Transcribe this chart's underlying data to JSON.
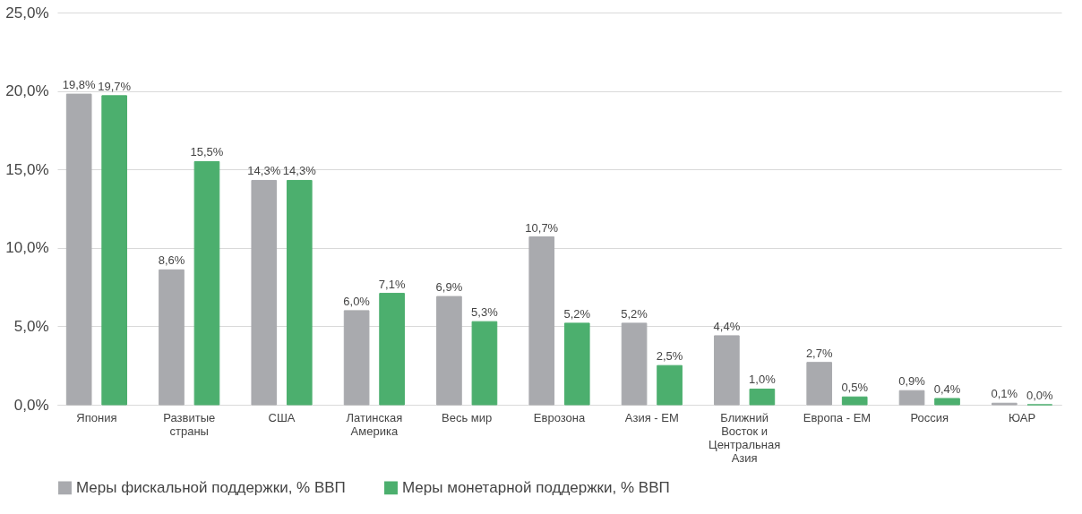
{
  "chart_data": {
    "type": "bar",
    "categories": [
      "Япония",
      "Развитые страны",
      "США",
      "Латинская Америка",
      "Весь мир",
      "Еврозона",
      "Азия - EM",
      "Ближний Восток и Центральная Азия",
      "Европа - EM",
      "Россия",
      "ЮАР"
    ],
    "series": [
      {
        "name": "Меры фискальной поддержки, % ВВП",
        "color": "#a9aaae",
        "values": [
          19.8,
          8.6,
          14.3,
          6.0,
          6.9,
          10.7,
          5.2,
          4.4,
          2.7,
          0.9,
          0.1
        ],
        "value_labels": [
          "19,8%",
          "8,6%",
          "14,3%",
          "6,0%",
          "6,9%",
          "10,7%",
          "5,2%",
          "4,4%",
          "2,7%",
          "0,9%",
          "0,1%"
        ]
      },
      {
        "name": "Меры монетарной поддержки, % ВВП",
        "color": "#4caf6e",
        "values": [
          19.7,
          15.5,
          14.3,
          7.1,
          5.3,
          5.2,
          2.5,
          1.0,
          0.5,
          0.4,
          0.0
        ],
        "value_labels": [
          "19,7%",
          "15,5%",
          "14,3%",
          "7,1%",
          "5,3%",
          "5,2%",
          "2,5%",
          "1,0%",
          "0,5%",
          "0,4%",
          "0,0%"
        ]
      }
    ],
    "ylim": [
      0,
      25
    ],
    "yticks": [
      {
        "value": 0,
        "label": "0,0%"
      },
      {
        "value": 5,
        "label": "5,0%"
      },
      {
        "value": 10,
        "label": "10,0%"
      },
      {
        "value": 15,
        "label": "15,0%"
      },
      {
        "value": 20,
        "label": "20,0%"
      },
      {
        "value": 25,
        "label": "25,0%"
      }
    ],
    "grid": "y",
    "legend": "bottom"
  }
}
